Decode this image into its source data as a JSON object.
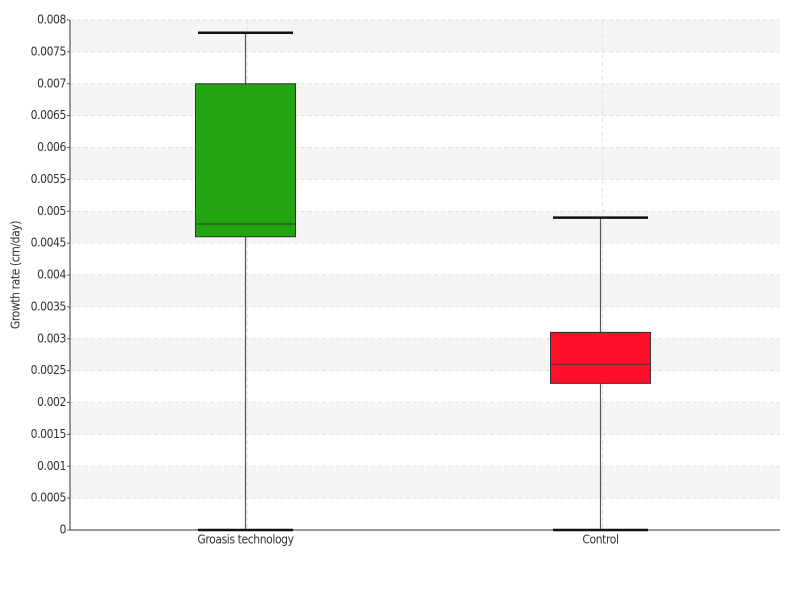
{
  "chart_data": {
    "type": "box",
    "y_label": "Growth rate (cm/day)",
    "categories": [
      "Groasis technology",
      "Control"
    ],
    "boxes": [
      {
        "min": 0,
        "q1": 0.0046,
        "median": 0.0048,
        "q3": 0.007,
        "max": 0.0078,
        "color": "#22a511"
      },
      {
        "min": 0,
        "q1": 0.0023,
        "median": 0.0026,
        "q3": 0.0031,
        "max": 0.0049,
        "color": "#ff0f2a"
      }
    ],
    "ylim": [
      0,
      0.008
    ],
    "yticks": [
      0,
      0.0005,
      0.001,
      0.0015,
      0.002,
      0.0025,
      0.003,
      0.0035,
      0.004,
      0.0045,
      0.005,
      0.0055,
      0.006,
      0.0065,
      0.007,
      0.0075,
      0.008
    ],
    "grid": true
  }
}
